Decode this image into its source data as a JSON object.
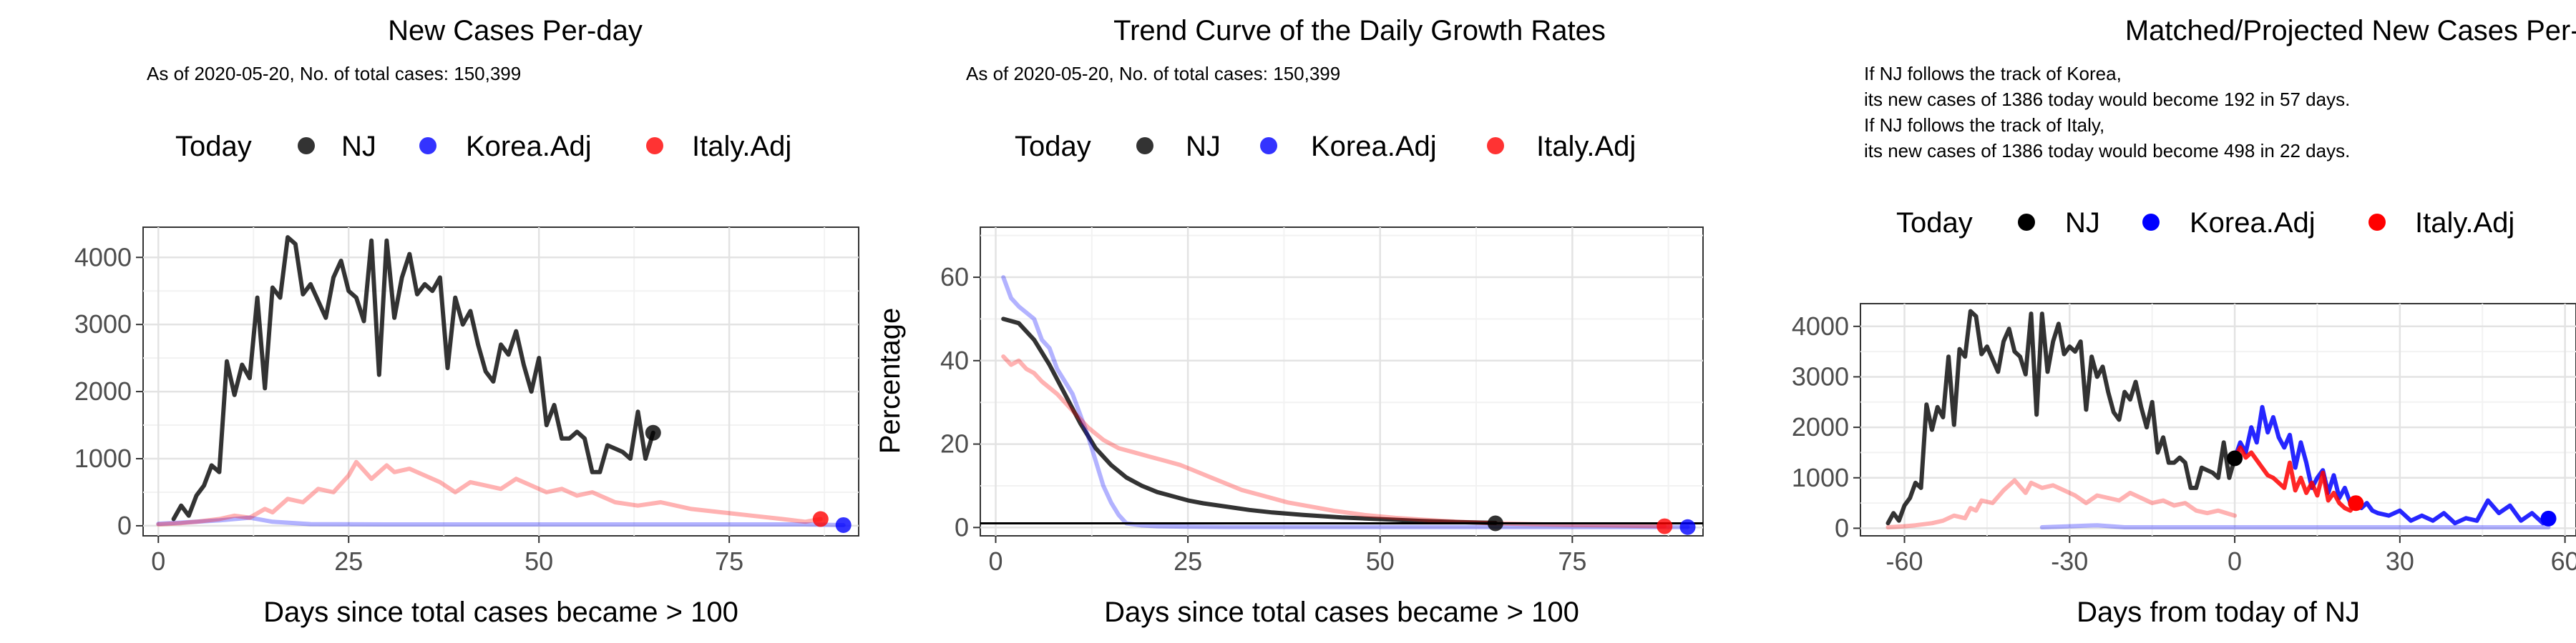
{
  "panels": [
    {
      "title": "New Cases Per-day",
      "subtitle_lines": [
        "As of 2020-05-20, No. of total cases: 150,399"
      ],
      "legend": {
        "title": "Today",
        "items": [
          "NJ",
          "Korea.Adj",
          "Italy.Adj"
        ]
      },
      "xlabel": "Days since total cases became > 100",
      "ylabel": ""
    },
    {
      "title": "Trend Curve of the Daily Growth Rates",
      "subtitle_lines": [
        "As of 2020-05-20, No. of total cases: 150,399"
      ],
      "legend": {
        "title": "Today",
        "items": [
          "NJ",
          "Korea.Adj",
          "Italy.Adj"
        ]
      },
      "xlabel": "Days since total cases became > 100",
      "ylabel": "Percentage"
    },
    {
      "title": "Matched/Projected New Cases Per-day",
      "subtitle_lines": [
        "If NJ follows the track of Korea,",
        "its new cases of 1386 today would become 192 in 57 days.",
        "If NJ follows the track of Italy,",
        "its new cases of 1386 today would become 498 in 22 days."
      ],
      "legend": {
        "title": "Today",
        "items": [
          "NJ",
          "Korea.Adj",
          "Italy.Adj"
        ]
      },
      "xlabel": "Days from today of NJ",
      "ylabel": ""
    }
  ],
  "colors": {
    "nj": "#000000",
    "korea": "#0000ff",
    "italy": "#ff0000"
  },
  "chart_data": [
    {
      "type": "line",
      "xlim": [
        -2,
        92
      ],
      "ylim": [
        -150,
        4450
      ],
      "xticks": [
        0,
        25,
        50,
        75
      ],
      "yticks": [
        0,
        1000,
        2000,
        3000,
        4000
      ],
      "series": [
        {
          "name": "NJ",
          "x": [
            2,
            3,
            4,
            5,
            6,
            7,
            8,
            9,
            10,
            11,
            12,
            13,
            14,
            15,
            16,
            17,
            18,
            19,
            20,
            21,
            22,
            23,
            24,
            25,
            26,
            27,
            28,
            29,
            30,
            31,
            32,
            33,
            34,
            35,
            36,
            37,
            38,
            39,
            40,
            41,
            42,
            43,
            44,
            45,
            46,
            47,
            48,
            49,
            50,
            51,
            52,
            53,
            54,
            55,
            56,
            57,
            58,
            59,
            60,
            61,
            62,
            63,
            64,
            65
          ],
          "y": [
            100,
            300,
            150,
            450,
            600,
            900,
            800,
            2450,
            1950,
            2400,
            2200,
            3400,
            2050,
            3550,
            3400,
            4300,
            4200,
            3450,
            3600,
            3350,
            3100,
            3700,
            3950,
            3500,
            3400,
            3050,
            4250,
            2250,
            4250,
            3100,
            3700,
            4050,
            3450,
            3600,
            3500,
            3700,
            2350,
            3400,
            3000,
            3200,
            2700,
            2300,
            2150,
            2700,
            2550,
            2900,
            2400,
            2000,
            2500,
            1500,
            1800,
            1300,
            1300,
            1400,
            1300,
            800,
            800,
            1200,
            1150,
            1100,
            1000,
            1700,
            1000,
            1386
          ]
        },
        {
          "name": "Korea.Adj",
          "x": [
            0,
            5,
            8,
            12,
            15,
            20,
            30,
            40,
            50,
            60,
            70,
            75,
            80,
            85,
            90
          ],
          "y": [
            30,
            60,
            80,
            120,
            60,
            25,
            20,
            20,
            20,
            20,
            20,
            20,
            20,
            20,
            10
          ]
        },
        {
          "name": "Italy.Adj",
          "x": [
            0,
            3,
            5,
            8,
            10,
            12,
            14,
            15,
            17,
            19,
            21,
            23,
            25,
            26,
            28,
            30,
            31,
            33,
            35,
            37,
            39,
            41,
            43,
            45,
            47,
            49,
            51,
            53,
            55,
            57,
            60,
            63,
            66,
            70,
            74,
            78,
            82,
            85,
            87
          ],
          "y": [
            20,
            40,
            60,
            100,
            150,
            120,
            250,
            200,
            400,
            350,
            550,
            500,
            750,
            950,
            700,
            900,
            800,
            850,
            750,
            650,
            500,
            650,
            600,
            550,
            700,
            600,
            500,
            550,
            450,
            500,
            350,
            300,
            350,
            250,
            200,
            150,
            100,
            60,
            100
          ]
        }
      ],
      "today": [
        {
          "name": "NJ",
          "x": 65,
          "y": 1386
        },
        {
          "name": "Korea.Adj",
          "x": 90,
          "y": 10
        },
        {
          "name": "Italy.Adj",
          "x": 87,
          "y": 100
        }
      ]
    },
    {
      "type": "line",
      "xlim": [
        -2,
        92
      ],
      "ylim": [
        -2,
        72
      ],
      "xticks": [
        0,
        25,
        50,
        75
      ],
      "yticks": [
        0,
        20,
        40,
        60
      ],
      "hline": 1,
      "series": [
        {
          "name": "NJ",
          "x": [
            1,
            3,
            5,
            7,
            9,
            11,
            13,
            15,
            17,
            19,
            21,
            23,
            25,
            27,
            30,
            33,
            36,
            40,
            45,
            50,
            55,
            60,
            65
          ],
          "y": [
            50,
            49,
            45,
            39,
            32,
            25,
            19,
            15,
            12,
            10,
            8.5,
            7.5,
            6.5,
            5.8,
            5,
            4.2,
            3.6,
            3,
            2.4,
            2,
            1.6,
            1.3,
            1.1
          ]
        },
        {
          "name": "Korea.Adj",
          "x": [
            1,
            2,
            3,
            5,
            6,
            7,
            8,
            9,
            10,
            11,
            12,
            13,
            14,
            15,
            16,
            17,
            19,
            21,
            25,
            30,
            40,
            50,
            60,
            70,
            80,
            90
          ],
          "y": [
            60,
            55,
            53,
            50,
            45,
            43,
            38,
            35,
            32,
            27,
            22,
            16,
            10,
            6,
            3,
            1,
            0.5,
            0.3,
            0.2,
            0.1,
            0.1,
            0.1,
            0.1,
            0.1,
            0.1,
            0.1
          ]
        },
        {
          "name": "Italy.Adj",
          "x": [
            1,
            2,
            3,
            4,
            5,
            6,
            8,
            10,
            12,
            14,
            16,
            18,
            20,
            22,
            24,
            26,
            28,
            30,
            32,
            35,
            38,
            41,
            44,
            48,
            52,
            56,
            60,
            65,
            70,
            75,
            80,
            87
          ],
          "y": [
            41,
            39,
            40,
            38,
            37,
            35,
            32,
            28,
            24,
            21,
            19,
            18,
            17,
            16,
            15,
            13.5,
            12,
            10.5,
            9,
            7.5,
            6,
            5,
            4,
            3,
            2.3,
            1.8,
            1.4,
            1,
            0.8,
            0.6,
            0.5,
            0.3
          ]
        }
      ],
      "today": [
        {
          "name": "NJ",
          "x": 65,
          "y": 1
        },
        {
          "name": "Korea.Adj",
          "x": 90,
          "y": 0.1
        },
        {
          "name": "Italy.Adj",
          "x": 87,
          "y": 0.3
        }
      ]
    },
    {
      "type": "line",
      "xlim": [
        -68,
        62
      ],
      "ylim": [
        -150,
        4450
      ],
      "xticks": [
        -60,
        -30,
        0,
        30,
        60
      ],
      "yticks": [
        0,
        1000,
        2000,
        3000,
        4000
      ],
      "series": [
        {
          "name": "NJ",
          "x": [
            -63,
            -62,
            -61,
            -60,
            -59,
            -58,
            -57,
            -56,
            -55,
            -54,
            -53,
            -52,
            -51,
            -50,
            -49,
            -48,
            -47,
            -46,
            -45,
            -44,
            -43,
            -42,
            -41,
            -40,
            -39,
            -38,
            -37,
            -36,
            -35,
            -34,
            -33,
            -32,
            -31,
            -30,
            -29,
            -28,
            -27,
            -26,
            -25,
            -24,
            -23,
            -22,
            -21,
            -20,
            -19,
            -18,
            -17,
            -16,
            -15,
            -14,
            -13,
            -12,
            -11,
            -10,
            -9,
            -8,
            -7,
            -6,
            -5,
            -4,
            -3,
            -2,
            -1,
            0
          ],
          "y": [
            100,
            300,
            150,
            450,
            600,
            900,
            800,
            2450,
            1950,
            2400,
            2200,
            3400,
            2050,
            3550,
            3400,
            4300,
            4200,
            3450,
            3600,
            3350,
            3100,
            3700,
            3950,
            3500,
            3400,
            3050,
            4250,
            2250,
            4250,
            3100,
            3700,
            4050,
            3450,
            3600,
            3500,
            3700,
            2350,
            3400,
            3000,
            3200,
            2700,
            2300,
            2150,
            2700,
            2550,
            2900,
            2400,
            2000,
            2500,
            1500,
            1800,
            1300,
            1300,
            1400,
            1300,
            800,
            800,
            1200,
            1150,
            1100,
            1000,
            1700,
            1000,
            1386
          ]
        },
        {
          "name": "Korea.Adj",
          "x": [
            -35,
            -30,
            -25,
            -20,
            -10,
            0,
            10,
            20,
            30,
            40,
            50,
            57
          ],
          "y": [
            20,
            40,
            60,
            20,
            20,
            20,
            20,
            20,
            20,
            20,
            20,
            20
          ]
        },
        {
          "name": "Italy.Adj",
          "x": [
            -63,
            -60,
            -58,
            -55,
            -53,
            -51,
            -49,
            -48,
            -47,
            -46,
            -44,
            -42,
            -40,
            -38,
            -37,
            -35,
            -33,
            -31,
            -29,
            -27,
            -25,
            -23,
            -21,
            -19,
            -17,
            -15,
            -13,
            -11,
            -9,
            -7,
            -5,
            -3,
            0
          ],
          "y": [
            20,
            40,
            60,
            100,
            150,
            250,
            200,
            400,
            350,
            550,
            500,
            750,
            950,
            700,
            900,
            800,
            850,
            750,
            650,
            500,
            650,
            600,
            550,
            700,
            600,
            500,
            550,
            450,
            500,
            350,
            300,
            350,
            250
          ]
        },
        {
          "name": "Korea.Adj",
          "x": [
            0,
            1,
            2,
            3,
            4,
            5,
            6,
            7,
            8,
            9,
            10,
            11,
            12,
            13,
            14,
            15,
            16,
            17,
            18,
            19,
            20,
            21,
            22,
            23,
            24,
            25,
            26,
            28,
            30,
            32,
            34,
            36,
            38,
            40,
            42,
            44,
            46,
            48,
            50,
            52,
            54,
            56,
            57
          ],
          "y": [
            1386,
            1700,
            1500,
            2000,
            1700,
            2400,
            1900,
            2200,
            1800,
            1600,
            1850,
            1200,
            1700,
            1300,
            800,
            1000,
            1150,
            700,
            1050,
            600,
            800,
            500,
            600,
            400,
            500,
            350,
            300,
            250,
            350,
            150,
            250,
            150,
            300,
            100,
            200,
            150,
            550,
            300,
            450,
            150,
            300,
            100,
            192
          ]
        },
        {
          "name": "Italy.Adj",
          "x": [
            0,
            1,
            2,
            3,
            4,
            5,
            6,
            7,
            8,
            9,
            10,
            11,
            12,
            13,
            14,
            15,
            16,
            17,
            18,
            19,
            20,
            21,
            22
          ],
          "y": [
            1386,
            1600,
            1400,
            1500,
            1350,
            1200,
            1050,
            1000,
            900,
            800,
            1300,
            750,
            1000,
            700,
            900,
            650,
            1100,
            550,
            700,
            500,
            400,
            350,
            498
          ]
        }
      ],
      "today": [
        {
          "name": "NJ",
          "x": 0,
          "y": 1386
        },
        {
          "name": "Korea.Adj",
          "x": 57,
          "y": 192
        },
        {
          "name": "Italy.Adj",
          "x": 22,
          "y": 498
        }
      ]
    }
  ]
}
